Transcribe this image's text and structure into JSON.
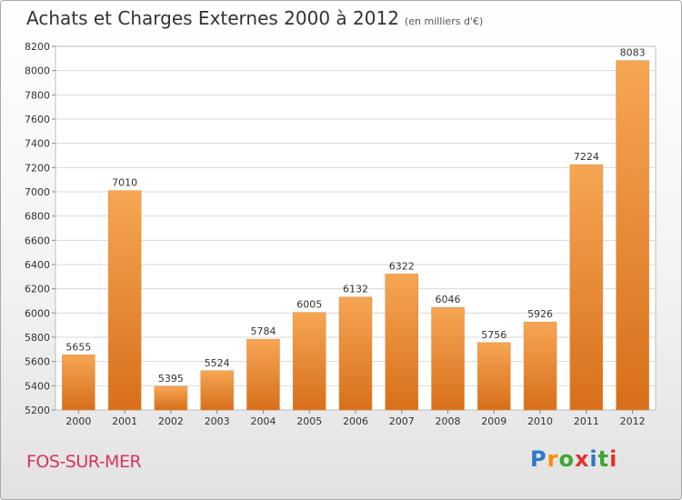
{
  "header": {
    "title": "Achats et Charges Externes 2000 à 2012",
    "unit": "(en milliers d'€)"
  },
  "footer": {
    "commune": "FOS-SUR-MER",
    "logo": "Proxiti"
  },
  "colors": {
    "bar_light": "#f6a654",
    "bar_dark": "#d86f1a",
    "commune_text": "#d7345e"
  },
  "chart_data": {
    "type": "bar",
    "title": "Achats et Charges Externes 2000 à 2012",
    "subtitle": "(en milliers d'€)",
    "categories": [
      "2000",
      "2001",
      "2002",
      "2003",
      "2004",
      "2005",
      "2006",
      "2007",
      "2008",
      "2009",
      "2010",
      "2011",
      "2012"
    ],
    "values": [
      5655,
      7010,
      5395,
      5524,
      5784,
      6005,
      6132,
      6322,
      6046,
      5756,
      5926,
      7224,
      8083
    ],
    "ylim": [
      5200,
      8200
    ],
    "yticks": [
      5200,
      5400,
      5600,
      5800,
      6000,
      6200,
      6400,
      6600,
      6800,
      7000,
      7200,
      7400,
      7600,
      7800,
      8000,
      8200
    ],
    "grid": true,
    "xlabel": "",
    "ylabel": ""
  }
}
